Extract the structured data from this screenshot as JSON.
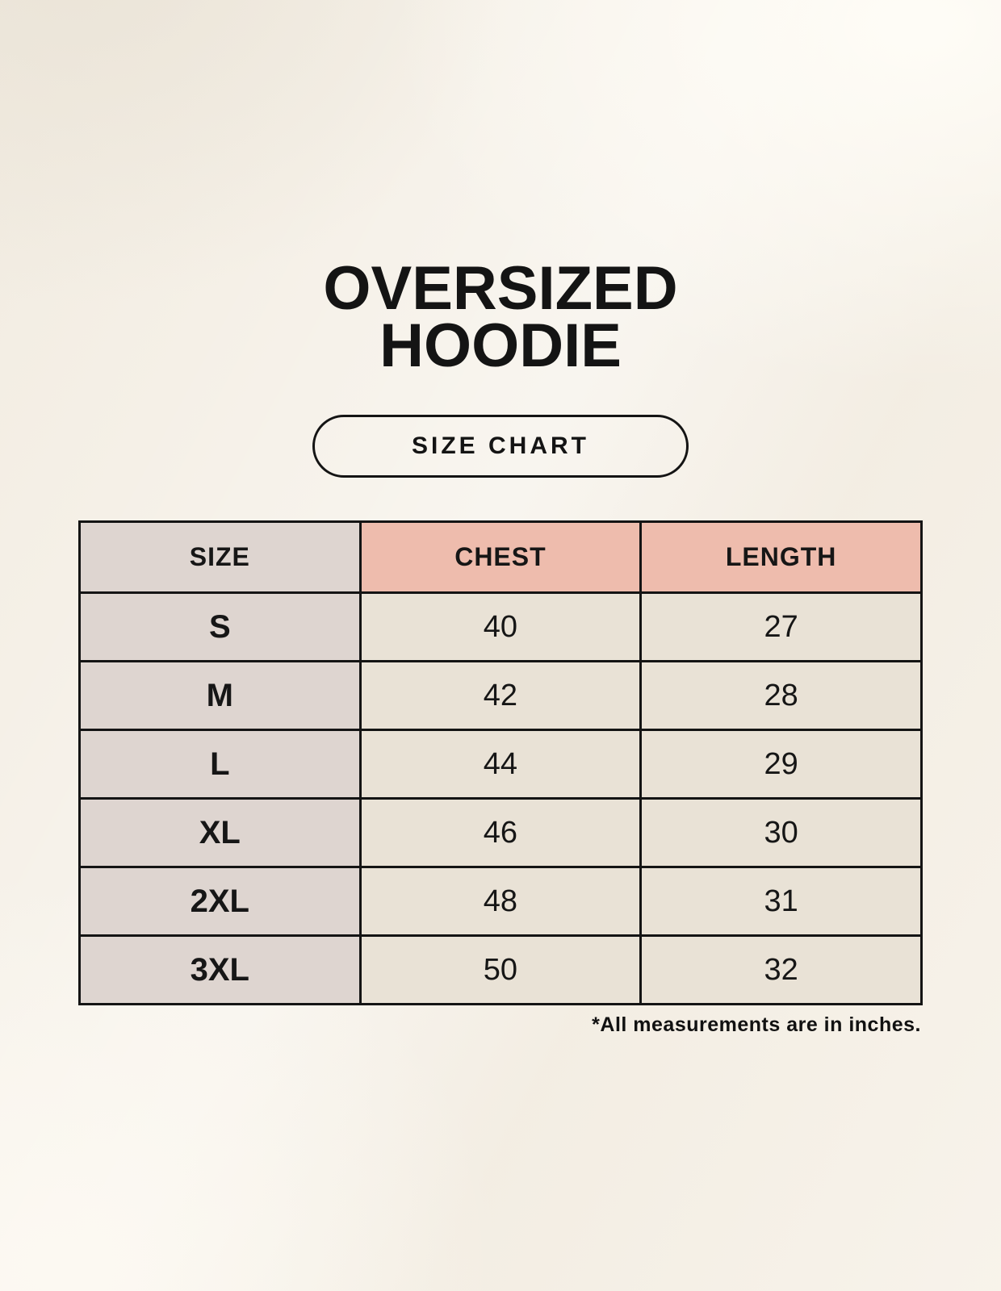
{
  "header": {
    "title": "OVERSIZED HOODIE",
    "title_lines": [
      "OVERSIZED",
      "HOODIE"
    ],
    "badge_label": "SIZE CHART"
  },
  "chart_data": {
    "type": "table",
    "title": "OVERSIZED HOODIE",
    "subtitle": "SIZE CHART",
    "columns": [
      "SIZE",
      "CHEST",
      "LENGTH"
    ],
    "rows": [
      [
        "S",
        "40",
        "27"
      ],
      [
        "M",
        "42",
        "28"
      ],
      [
        "L",
        "44",
        "29"
      ],
      [
        "XL",
        "46",
        "30"
      ],
      [
        "2XL",
        "48",
        "31"
      ],
      [
        "3XL",
        "50",
        "32"
      ]
    ],
    "footnote": "*All measurements are in inches."
  },
  "colors": {
    "background": "#f5f0e7",
    "size_column_bg": "#ded5d0",
    "measure_header_bg": "#eebcad",
    "value_cell_bg": "#e9e2d6",
    "table_border": "#141414",
    "text": "#161616"
  }
}
